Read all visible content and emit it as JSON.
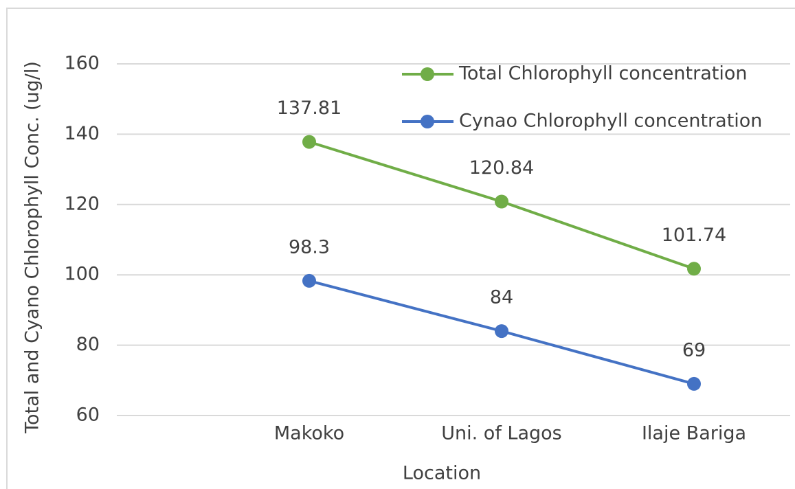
{
  "chart_data": {
    "type": "line",
    "categories": [
      "Makoko",
      "Uni. of Lagos",
      "Ilaje Bariga"
    ],
    "series": [
      {
        "name": "Total Chlorophyll concentration",
        "color": "#70ad47",
        "values": [
          137.81,
          120.84,
          101.74
        ]
      },
      {
        "name": "Cynao Chlorophyll concentration",
        "color": "#4472c4",
        "values": [
          98.3,
          84,
          69
        ]
      }
    ],
    "x_label": "Location",
    "y_label": "Total and Cyano Chlorophyll Conc. (ug/l)",
    "ylim": [
      60,
      160
    ],
    "yticks": [
      60,
      80,
      100,
      120,
      140,
      160
    ],
    "grid": true,
    "legend": "upper right"
  }
}
